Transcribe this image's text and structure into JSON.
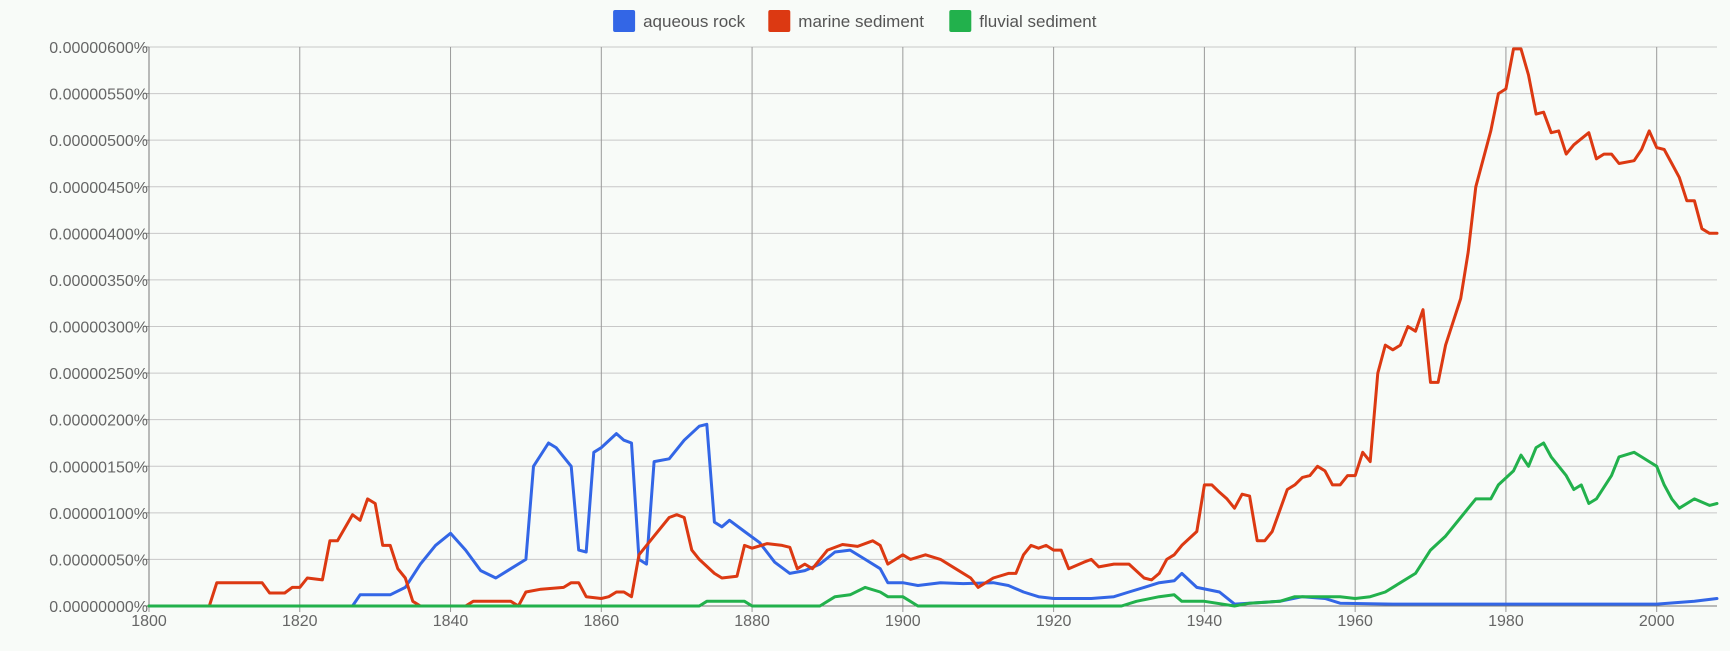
{
  "chart_data": {
    "type": "line",
    "title": "",
    "xlabel": "",
    "ylabel": "",
    "xlim": [
      1800,
      2008
    ],
    "ylim": [
      0,
      6e-06
    ],
    "grid": true,
    "legend_position": "top-center",
    "x_ticks": [
      1800,
      1820,
      1840,
      1860,
      1880,
      1900,
      1920,
      1940,
      1960,
      1980,
      2000
    ],
    "x_tick_labels": [
      "1800",
      "1820",
      "1840",
      "1860",
      "1880",
      "1900",
      "1920",
      "1940",
      "1960",
      "1980",
      "2000"
    ],
    "y_ticks": [
      0,
      5e-07,
      1e-06,
      1.5e-06,
      2e-06,
      2.5e-06,
      3e-06,
      3.5e-06,
      4e-06,
      4.5e-06,
      5e-06,
      5.5e-06,
      6e-06
    ],
    "y_tick_labels": [
      "0.00000000%",
      "0.00000050%",
      "0.00000100%",
      "0.00000150%",
      "0.00000200%",
      "0.00000250%",
      "0.00000300%",
      "0.00000350%",
      "0.00000400%",
      "0.00000450%",
      "0.00000500%",
      "0.00000550%",
      "0.00000600%"
    ],
    "series": [
      {
        "name": "aqueous rock",
        "color": "#3366e6",
        "points": [
          [
            1800,
            0
          ],
          [
            1827,
            0
          ],
          [
            1828,
            1.2e-07
          ],
          [
            1832,
            1.2e-07
          ],
          [
            1834,
            2e-07
          ],
          [
            1836,
            4.5e-07
          ],
          [
            1838,
            6.5e-07
          ],
          [
            1840,
            7.8e-07
          ],
          [
            1842,
            6e-07
          ],
          [
            1844,
            3.8e-07
          ],
          [
            1846,
            3e-07
          ],
          [
            1848,
            4e-07
          ],
          [
            1850,
            5e-07
          ],
          [
            1851,
            1.5e-06
          ],
          [
            1853,
            1.75e-06
          ],
          [
            1854,
            1.7e-06
          ],
          [
            1856,
            1.5e-06
          ],
          [
            1857,
            6e-07
          ],
          [
            1858,
            5.8e-07
          ],
          [
            1859,
            1.65e-06
          ],
          [
            1860,
            1.7e-06
          ],
          [
            1862,
            1.85e-06
          ],
          [
            1863,
            1.78e-06
          ],
          [
            1864,
            1.75e-06
          ],
          [
            1865,
            5e-07
          ],
          [
            1866,
            4.5e-07
          ],
          [
            1867,
            1.55e-06
          ],
          [
            1869,
            1.58e-06
          ],
          [
            1871,
            1.78e-06
          ],
          [
            1873,
            1.93e-06
          ],
          [
            1874,
            1.95e-06
          ],
          [
            1875,
            9e-07
          ],
          [
            1876,
            8.5e-07
          ],
          [
            1877,
            9.2e-07
          ],
          [
            1879,
            8e-07
          ],
          [
            1881,
            6.8e-07
          ],
          [
            1883,
            4.7e-07
          ],
          [
            1885,
            3.5e-07
          ],
          [
            1887,
            3.8e-07
          ],
          [
            1889,
            4.5e-07
          ],
          [
            1891,
            5.8e-07
          ],
          [
            1893,
            6e-07
          ],
          [
            1895,
            5e-07
          ],
          [
            1897,
            4e-07
          ],
          [
            1898,
            2.5e-07
          ],
          [
            1900,
            2.5e-07
          ],
          [
            1902,
            2.2e-07
          ],
          [
            1905,
            2.5e-07
          ],
          [
            1908,
            2.4e-07
          ],
          [
            1912,
            2.5e-07
          ],
          [
            1914,
            2.2e-07
          ],
          [
            1916,
            1.5e-07
          ],
          [
            1918,
            1e-07
          ],
          [
            1920,
            8e-08
          ],
          [
            1925,
            8e-08
          ],
          [
            1928,
            1e-07
          ],
          [
            1930,
            1.5e-07
          ],
          [
            1932,
            2e-07
          ],
          [
            1934,
            2.5e-07
          ],
          [
            1936,
            2.7e-07
          ],
          [
            1937,
            3.5e-07
          ],
          [
            1939,
            2e-07
          ],
          [
            1942,
            1.5e-07
          ],
          [
            1944,
            2e-08
          ],
          [
            1950,
            5e-08
          ],
          [
            1953,
            1e-07
          ],
          [
            1956,
            8e-08
          ],
          [
            1958,
            3e-08
          ],
          [
            1965,
            2e-08
          ],
          [
            1980,
            2e-08
          ],
          [
            2000,
            2e-08
          ],
          [
            2005,
            5e-08
          ],
          [
            2008,
            8e-08
          ]
        ]
      },
      {
        "name": "marine sediment",
        "color": "#dc3912",
        "points": [
          [
            1800,
            0
          ],
          [
            1808,
            0
          ],
          [
            1809,
            2.5e-07
          ],
          [
            1815,
            2.5e-07
          ],
          [
            1816,
            1.4e-07
          ],
          [
            1818,
            1.4e-07
          ],
          [
            1819,
            2e-07
          ],
          [
            1820,
            2e-07
          ],
          [
            1821,
            3e-07
          ],
          [
            1823,
            2.8e-07
          ],
          [
            1824,
            7e-07
          ],
          [
            1825,
            7e-07
          ],
          [
            1827,
            9.8e-07
          ],
          [
            1828,
            9.2e-07
          ],
          [
            1829,
            1.15e-06
          ],
          [
            1830,
            1.1e-06
          ],
          [
            1831,
            6.5e-07
          ],
          [
            1832,
            6.5e-07
          ],
          [
            1833,
            4e-07
          ],
          [
            1834,
            3e-07
          ],
          [
            1835,
            5e-08
          ],
          [
            1836,
            0
          ],
          [
            1842,
            0
          ],
          [
            1843,
            5e-08
          ],
          [
            1848,
            5e-08
          ],
          [
            1849,
            0
          ],
          [
            1850,
            1.5e-07
          ],
          [
            1852,
            1.8e-07
          ],
          [
            1855,
            2e-07
          ],
          [
            1856,
            2.5e-07
          ],
          [
            1857,
            2.5e-07
          ],
          [
            1858,
            1e-07
          ],
          [
            1860,
            8e-08
          ],
          [
            1861,
            1e-07
          ],
          [
            1862,
            1.5e-07
          ],
          [
            1863,
            1.5e-07
          ],
          [
            1864,
            1e-07
          ],
          [
            1865,
            5.5e-07
          ],
          [
            1867,
            7.5e-07
          ],
          [
            1869,
            9.5e-07
          ],
          [
            1870,
            9.8e-07
          ],
          [
            1871,
            9.5e-07
          ],
          [
            1872,
            6e-07
          ],
          [
            1873,
            5e-07
          ],
          [
            1875,
            3.5e-07
          ],
          [
            1876,
            3e-07
          ],
          [
            1878,
            3.2e-07
          ],
          [
            1879,
            6.5e-07
          ],
          [
            1880,
            6.2e-07
          ],
          [
            1882,
            6.7e-07
          ],
          [
            1884,
            6.5e-07
          ],
          [
            1885,
            6.3e-07
          ],
          [
            1886,
            4e-07
          ],
          [
            1887,
            4.5e-07
          ],
          [
            1888,
            4e-07
          ],
          [
            1890,
            6e-07
          ],
          [
            1892,
            6.6e-07
          ],
          [
            1894,
            6.4e-07
          ],
          [
            1896,
            7e-07
          ],
          [
            1897,
            6.5e-07
          ],
          [
            1898,
            4.5e-07
          ],
          [
            1900,
            5.5e-07
          ],
          [
            1901,
            5e-07
          ],
          [
            1903,
            5.5e-07
          ],
          [
            1905,
            5e-07
          ],
          [
            1907,
            4e-07
          ],
          [
            1909,
            3e-07
          ],
          [
            1910,
            2e-07
          ],
          [
            1912,
            3e-07
          ],
          [
            1914,
            3.5e-07
          ],
          [
            1915,
            3.5e-07
          ],
          [
            1916,
            5.5e-07
          ],
          [
            1917,
            6.5e-07
          ],
          [
            1918,
            6.2e-07
          ],
          [
            1919,
            6.5e-07
          ],
          [
            1920,
            6e-07
          ],
          [
            1921,
            6e-07
          ],
          [
            1922,
            4e-07
          ],
          [
            1924,
            4.7e-07
          ],
          [
            1925,
            5e-07
          ],
          [
            1926,
            4.2e-07
          ],
          [
            1928,
            4.5e-07
          ],
          [
            1930,
            4.5e-07
          ],
          [
            1932,
            3e-07
          ],
          [
            1933,
            2.8e-07
          ],
          [
            1934,
            3.5e-07
          ],
          [
            1935,
            5e-07
          ],
          [
            1936,
            5.5e-07
          ],
          [
            1937,
            6.5e-07
          ],
          [
            1939,
            8e-07
          ],
          [
            1940,
            1.3e-06
          ],
          [
            1941,
            1.3e-06
          ],
          [
            1942,
            1.22e-06
          ],
          [
            1943,
            1.15e-06
          ],
          [
            1944,
            1.05e-06
          ],
          [
            1945,
            1.2e-06
          ],
          [
            1946,
            1.18e-06
          ],
          [
            1947,
            7e-07
          ],
          [
            1948,
            7e-07
          ],
          [
            1949,
            8e-07
          ],
          [
            1951,
            1.25e-06
          ],
          [
            1952,
            1.3e-06
          ],
          [
            1953,
            1.38e-06
          ],
          [
            1954,
            1.4e-06
          ],
          [
            1955,
            1.5e-06
          ],
          [
            1956,
            1.45e-06
          ],
          [
            1957,
            1.3e-06
          ],
          [
            1958,
            1.3e-06
          ],
          [
            1959,
            1.4e-06
          ],
          [
            1960,
            1.4e-06
          ],
          [
            1961,
            1.65e-06
          ],
          [
            1962,
            1.55e-06
          ],
          [
            1963,
            2.5e-06
          ],
          [
            1964,
            2.8e-06
          ],
          [
            1965,
            2.75e-06
          ],
          [
            1966,
            2.8e-06
          ],
          [
            1967,
            3e-06
          ],
          [
            1968,
            2.95e-06
          ],
          [
            1969,
            3.18e-06
          ],
          [
            1970,
            2.4e-06
          ],
          [
            1971,
            2.4e-06
          ],
          [
            1972,
            2.8e-06
          ],
          [
            1974,
            3.3e-06
          ],
          [
            1975,
            3.8e-06
          ],
          [
            1976,
            4.5e-06
          ],
          [
            1978,
            5.1e-06
          ],
          [
            1979,
            5.5e-06
          ],
          [
            1980,
            5.55e-06
          ],
          [
            1981,
            5.98e-06
          ],
          [
            1982,
            5.98e-06
          ],
          [
            1983,
            5.7e-06
          ],
          [
            1984,
            5.28e-06
          ],
          [
            1985,
            5.3e-06
          ],
          [
            1986,
            5.08e-06
          ],
          [
            1987,
            5.1e-06
          ],
          [
            1988,
            4.85e-06
          ],
          [
            1989,
            4.95e-06
          ],
          [
            1991,
            5.08e-06
          ],
          [
            1992,
            4.8e-06
          ],
          [
            1993,
            4.85e-06
          ],
          [
            1994,
            4.85e-06
          ],
          [
            1995,
            4.75e-06
          ],
          [
            1997,
            4.78e-06
          ],
          [
            1998,
            4.9e-06
          ],
          [
            1999,
            5.1e-06
          ],
          [
            2000,
            4.92e-06
          ],
          [
            2001,
            4.9e-06
          ],
          [
            2002,
            4.75e-06
          ],
          [
            2003,
            4.6e-06
          ],
          [
            2004,
            4.35e-06
          ],
          [
            2005,
            4.35e-06
          ],
          [
            2006,
            4.05e-06
          ],
          [
            2007,
            4e-06
          ],
          [
            2008,
            4e-06
          ]
        ]
      },
      {
        "name": "fluvial sediment",
        "color": "#22b14c",
        "points": [
          [
            1800,
            0
          ],
          [
            1873,
            0
          ],
          [
            1874,
            5e-08
          ],
          [
            1879,
            5e-08
          ],
          [
            1880,
            0
          ],
          [
            1889,
            0
          ],
          [
            1891,
            1e-07
          ],
          [
            1893,
            1.2e-07
          ],
          [
            1895,
            2e-07
          ],
          [
            1897,
            1.5e-07
          ],
          [
            1898,
            1e-07
          ],
          [
            1900,
            1e-07
          ],
          [
            1902,
            0
          ],
          [
            1929,
            0
          ],
          [
            1931,
            5e-08
          ],
          [
            1934,
            1e-07
          ],
          [
            1936,
            1.2e-07
          ],
          [
            1937,
            5e-08
          ],
          [
            1940,
            5e-08
          ],
          [
            1944,
            0
          ],
          [
            1946,
            3e-08
          ],
          [
            1950,
            5e-08
          ],
          [
            1952,
            1e-07
          ],
          [
            1955,
            1e-07
          ],
          [
            1958,
            1e-07
          ],
          [
            1960,
            8e-08
          ],
          [
            1962,
            1e-07
          ],
          [
            1964,
            1.5e-07
          ],
          [
            1966,
            2.5e-07
          ],
          [
            1968,
            3.5e-07
          ],
          [
            1970,
            6e-07
          ],
          [
            1972,
            7.5e-07
          ],
          [
            1974,
            9.5e-07
          ],
          [
            1976,
            1.15e-06
          ],
          [
            1978,
            1.15e-06
          ],
          [
            1979,
            1.3e-06
          ],
          [
            1981,
            1.45e-06
          ],
          [
            1982,
            1.62e-06
          ],
          [
            1983,
            1.5e-06
          ],
          [
            1984,
            1.7e-06
          ],
          [
            1985,
            1.75e-06
          ],
          [
            1986,
            1.6e-06
          ],
          [
            1988,
            1.4e-06
          ],
          [
            1989,
            1.25e-06
          ],
          [
            1990,
            1.3e-06
          ],
          [
            1991,
            1.1e-06
          ],
          [
            1992,
            1.15e-06
          ],
          [
            1994,
            1.4e-06
          ],
          [
            1995,
            1.6e-06
          ],
          [
            1997,
            1.65e-06
          ],
          [
            1998,
            1.6e-06
          ],
          [
            2000,
            1.5e-06
          ],
          [
            2001,
            1.3e-06
          ],
          [
            2002,
            1.15e-06
          ],
          [
            2003,
            1.05e-06
          ],
          [
            2005,
            1.15e-06
          ],
          [
            2007,
            1.08e-06
          ],
          [
            2008,
            1.1e-06
          ]
        ]
      }
    ]
  }
}
